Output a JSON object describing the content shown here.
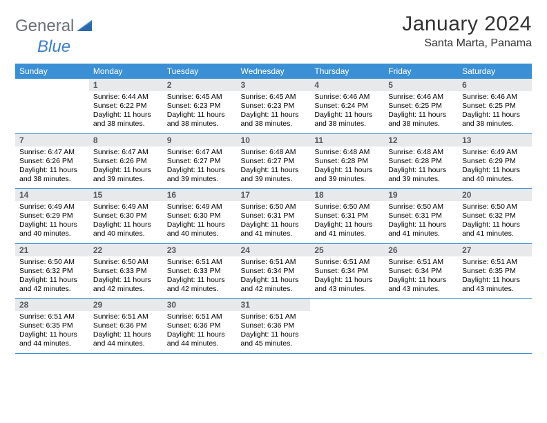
{
  "logo": {
    "general": "General",
    "blue": "Blue"
  },
  "title": "January 2024",
  "location": "Santa Marta, Panama",
  "colors": {
    "header_bg": "#3b8fd4",
    "header_text": "#ffffff",
    "daynum_bg": "#e7e9eb",
    "daynum_text": "#555a5f",
    "border": "#3b8fd4",
    "page_bg": "#ffffff",
    "text": "#000000"
  },
  "day_headers": [
    "Sunday",
    "Monday",
    "Tuesday",
    "Wednesday",
    "Thursday",
    "Friday",
    "Saturday"
  ],
  "weeks": [
    [
      {
        "blank": true
      },
      {
        "num": "1",
        "sunrise": "Sunrise: 6:44 AM",
        "sunset": "Sunset: 6:22 PM",
        "daylight": "Daylight: 11 hours and 38 minutes."
      },
      {
        "num": "2",
        "sunrise": "Sunrise: 6:45 AM",
        "sunset": "Sunset: 6:23 PM",
        "daylight": "Daylight: 11 hours and 38 minutes."
      },
      {
        "num": "3",
        "sunrise": "Sunrise: 6:45 AM",
        "sunset": "Sunset: 6:23 PM",
        "daylight": "Daylight: 11 hours and 38 minutes."
      },
      {
        "num": "4",
        "sunrise": "Sunrise: 6:46 AM",
        "sunset": "Sunset: 6:24 PM",
        "daylight": "Daylight: 11 hours and 38 minutes."
      },
      {
        "num": "5",
        "sunrise": "Sunrise: 6:46 AM",
        "sunset": "Sunset: 6:25 PM",
        "daylight": "Daylight: 11 hours and 38 minutes."
      },
      {
        "num": "6",
        "sunrise": "Sunrise: 6:46 AM",
        "sunset": "Sunset: 6:25 PM",
        "daylight": "Daylight: 11 hours and 38 minutes."
      }
    ],
    [
      {
        "num": "7",
        "sunrise": "Sunrise: 6:47 AM",
        "sunset": "Sunset: 6:26 PM",
        "daylight": "Daylight: 11 hours and 38 minutes."
      },
      {
        "num": "8",
        "sunrise": "Sunrise: 6:47 AM",
        "sunset": "Sunset: 6:26 PM",
        "daylight": "Daylight: 11 hours and 39 minutes."
      },
      {
        "num": "9",
        "sunrise": "Sunrise: 6:47 AM",
        "sunset": "Sunset: 6:27 PM",
        "daylight": "Daylight: 11 hours and 39 minutes."
      },
      {
        "num": "10",
        "sunrise": "Sunrise: 6:48 AM",
        "sunset": "Sunset: 6:27 PM",
        "daylight": "Daylight: 11 hours and 39 minutes."
      },
      {
        "num": "11",
        "sunrise": "Sunrise: 6:48 AM",
        "sunset": "Sunset: 6:28 PM",
        "daylight": "Daylight: 11 hours and 39 minutes."
      },
      {
        "num": "12",
        "sunrise": "Sunrise: 6:48 AM",
        "sunset": "Sunset: 6:28 PM",
        "daylight": "Daylight: 11 hours and 39 minutes."
      },
      {
        "num": "13",
        "sunrise": "Sunrise: 6:49 AM",
        "sunset": "Sunset: 6:29 PM",
        "daylight": "Daylight: 11 hours and 40 minutes."
      }
    ],
    [
      {
        "num": "14",
        "sunrise": "Sunrise: 6:49 AM",
        "sunset": "Sunset: 6:29 PM",
        "daylight": "Daylight: 11 hours and 40 minutes."
      },
      {
        "num": "15",
        "sunrise": "Sunrise: 6:49 AM",
        "sunset": "Sunset: 6:30 PM",
        "daylight": "Daylight: 11 hours and 40 minutes."
      },
      {
        "num": "16",
        "sunrise": "Sunrise: 6:49 AM",
        "sunset": "Sunset: 6:30 PM",
        "daylight": "Daylight: 11 hours and 40 minutes."
      },
      {
        "num": "17",
        "sunrise": "Sunrise: 6:50 AM",
        "sunset": "Sunset: 6:31 PM",
        "daylight": "Daylight: 11 hours and 41 minutes."
      },
      {
        "num": "18",
        "sunrise": "Sunrise: 6:50 AM",
        "sunset": "Sunset: 6:31 PM",
        "daylight": "Daylight: 11 hours and 41 minutes."
      },
      {
        "num": "19",
        "sunrise": "Sunrise: 6:50 AM",
        "sunset": "Sunset: 6:31 PM",
        "daylight": "Daylight: 11 hours and 41 minutes."
      },
      {
        "num": "20",
        "sunrise": "Sunrise: 6:50 AM",
        "sunset": "Sunset: 6:32 PM",
        "daylight": "Daylight: 11 hours and 41 minutes."
      }
    ],
    [
      {
        "num": "21",
        "sunrise": "Sunrise: 6:50 AM",
        "sunset": "Sunset: 6:32 PM",
        "daylight": "Daylight: 11 hours and 42 minutes."
      },
      {
        "num": "22",
        "sunrise": "Sunrise: 6:50 AM",
        "sunset": "Sunset: 6:33 PM",
        "daylight": "Daylight: 11 hours and 42 minutes."
      },
      {
        "num": "23",
        "sunrise": "Sunrise: 6:51 AM",
        "sunset": "Sunset: 6:33 PM",
        "daylight": "Daylight: 11 hours and 42 minutes."
      },
      {
        "num": "24",
        "sunrise": "Sunrise: 6:51 AM",
        "sunset": "Sunset: 6:34 PM",
        "daylight": "Daylight: 11 hours and 42 minutes."
      },
      {
        "num": "25",
        "sunrise": "Sunrise: 6:51 AM",
        "sunset": "Sunset: 6:34 PM",
        "daylight": "Daylight: 11 hours and 43 minutes."
      },
      {
        "num": "26",
        "sunrise": "Sunrise: 6:51 AM",
        "sunset": "Sunset: 6:34 PM",
        "daylight": "Daylight: 11 hours and 43 minutes."
      },
      {
        "num": "27",
        "sunrise": "Sunrise: 6:51 AM",
        "sunset": "Sunset: 6:35 PM",
        "daylight": "Daylight: 11 hours and 43 minutes."
      }
    ],
    [
      {
        "num": "28",
        "sunrise": "Sunrise: 6:51 AM",
        "sunset": "Sunset: 6:35 PM",
        "daylight": "Daylight: 11 hours and 44 minutes."
      },
      {
        "num": "29",
        "sunrise": "Sunrise: 6:51 AM",
        "sunset": "Sunset: 6:36 PM",
        "daylight": "Daylight: 11 hours and 44 minutes."
      },
      {
        "num": "30",
        "sunrise": "Sunrise: 6:51 AM",
        "sunset": "Sunset: 6:36 PM",
        "daylight": "Daylight: 11 hours and 44 minutes."
      },
      {
        "num": "31",
        "sunrise": "Sunrise: 6:51 AM",
        "sunset": "Sunset: 6:36 PM",
        "daylight": "Daylight: 11 hours and 45 minutes."
      },
      {
        "blank": true
      },
      {
        "blank": true
      },
      {
        "blank": true
      }
    ]
  ]
}
